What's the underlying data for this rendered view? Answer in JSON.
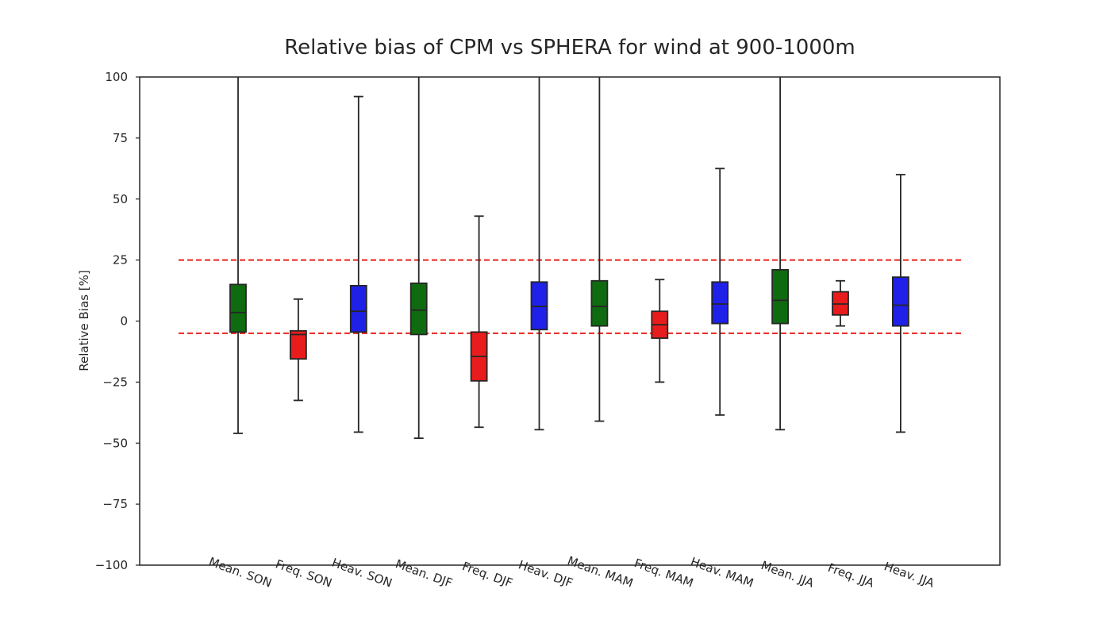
{
  "chart_data": {
    "type": "box",
    "title": "Relative bias of CPM vs SPHERA for wind at 900-1000m",
    "xlabel": "",
    "ylabel": "Relative Bias [%]",
    "ylim": [
      -100,
      100
    ],
    "yticks": [
      100,
      75,
      50,
      25,
      0,
      -25,
      -50,
      -75,
      -100
    ],
    "ytick_labels": [
      "100",
      "75",
      "50",
      "25",
      "0",
      "−25",
      "−50",
      "−75",
      "−100"
    ],
    "grid": false,
    "reference_lines": [
      25,
      -5
    ],
    "reference_line_color": "#e8241c",
    "categories": [
      "Mean. SON",
      "Freq. SON",
      "Heav. SON",
      "Mean. DJF",
      "Freq. DJF",
      "Heav. DJF",
      "Mean. MAM",
      "Freq. MAM",
      "Heav. MAM",
      "Mean. JJA",
      "Freq. JJA",
      "Heav. JJA"
    ],
    "colors": [
      "#0f6b0f",
      "#e81c1c",
      "#1f20e8",
      "#0f6b0f",
      "#e81c1c",
      "#1f20e8",
      "#0f6b0f",
      "#e81c1c",
      "#1f20e8",
      "#0f6b0f",
      "#e81c1c",
      "#1f20e8"
    ],
    "boxes": [
      {
        "whislo": -46,
        "q1": -4.5,
        "med": 3.5,
        "q3": 15,
        "whishi": 100,
        "cap_high": false
      },
      {
        "whislo": -32.5,
        "q1": -15.5,
        "med": -5.5,
        "q3": -4,
        "whishi": 9,
        "cap_high": true
      },
      {
        "whislo": -45.5,
        "q1": -4.5,
        "med": 4,
        "q3": 14.5,
        "whishi": 92,
        "cap_high": true
      },
      {
        "whislo": -48,
        "q1": -5.5,
        "med": 4.5,
        "q3": 15.5,
        "whishi": 100,
        "cap_high": false
      },
      {
        "whislo": -43.5,
        "q1": -24.5,
        "med": -14.5,
        "q3": -4.5,
        "whishi": 43,
        "cap_high": true
      },
      {
        "whislo": -44.5,
        "q1": -3.5,
        "med": 6,
        "q3": 16,
        "whishi": 100,
        "cap_high": false
      },
      {
        "whislo": -41,
        "q1": -2,
        "med": 6,
        "q3": 16.5,
        "whishi": 100,
        "cap_high": false
      },
      {
        "whislo": -25,
        "q1": -7,
        "med": -1.5,
        "q3": 4,
        "whishi": 17,
        "cap_high": true
      },
      {
        "whislo": -38.5,
        "q1": -1,
        "med": 7,
        "q3": 16,
        "whishi": 62.5,
        "cap_high": true
      },
      {
        "whislo": -44.5,
        "q1": -1,
        "med": 8.5,
        "q3": 21,
        "whishi": 100,
        "cap_high": false
      },
      {
        "whislo": -2,
        "q1": 2.5,
        "med": 7,
        "q3": 12,
        "whishi": 16.5,
        "cap_high": true
      },
      {
        "whislo": -45.5,
        "q1": -2,
        "med": 6.5,
        "q3": 18,
        "whishi": 60,
        "cap_high": true
      }
    ]
  }
}
